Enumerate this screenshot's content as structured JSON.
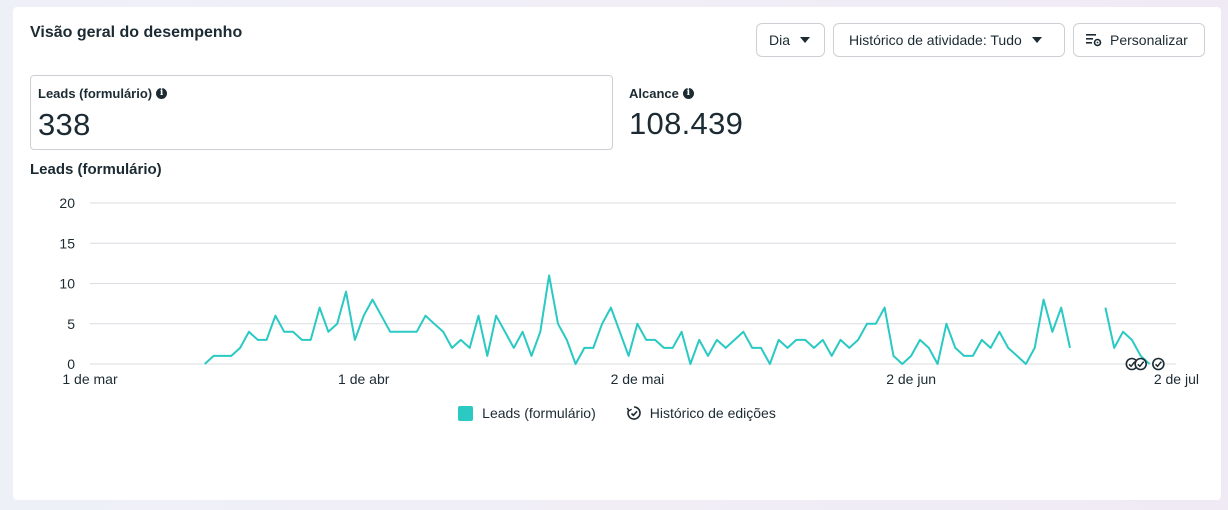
{
  "card": {
    "title": "Visão geral do desempenho"
  },
  "toolbar": {
    "period_label": "Dia",
    "activity_label": "Histórico de atividade: Tudo",
    "customize_label": "Personalizar"
  },
  "metrics": [
    {
      "label": "Leads (formulário)",
      "value": "338"
    },
    {
      "label": "Alcance",
      "value": "108.439"
    }
  ],
  "chart_title": "Leads (formulário)",
  "legend": {
    "series_label": "Leads (formulário)",
    "history_label": "Histórico de edições"
  },
  "colors": {
    "series": "#2ac9c4",
    "grid": "#dadde1",
    "text": "#1c2b33"
  },
  "chart_data": {
    "type": "line",
    "title": "Leads (formulário)",
    "xlabel": "",
    "ylabel": "",
    "ylim": [
      0,
      20
    ],
    "yticks": [
      0,
      5,
      10,
      15,
      20
    ],
    "xticks": [
      "1 de mar",
      "1 de abr",
      "2 de mai",
      "2 de jun",
      "2 de jul"
    ],
    "x_range": [
      "2024-03-01",
      "2024-07-02"
    ],
    "grid": true,
    "legend_position": "bottom",
    "series": [
      {
        "name": "Leads (formulário)",
        "color": "#2ac9c4",
        "points": [
          [
            "2024-03-14",
            0
          ],
          [
            "2024-03-15",
            1
          ],
          [
            "2024-03-16",
            1
          ],
          [
            "2024-03-17",
            1
          ],
          [
            "2024-03-18",
            2
          ],
          [
            "2024-03-19",
            4
          ],
          [
            "2024-03-20",
            3
          ],
          [
            "2024-03-21",
            3
          ],
          [
            "2024-03-22",
            6
          ],
          [
            "2024-03-23",
            4
          ],
          [
            "2024-03-24",
            4
          ],
          [
            "2024-03-25",
            3
          ],
          [
            "2024-03-26",
            3
          ],
          [
            "2024-03-27",
            7
          ],
          [
            "2024-03-28",
            4
          ],
          [
            "2024-03-29",
            5
          ],
          [
            "2024-03-30",
            9
          ],
          [
            "2024-03-31",
            3
          ],
          [
            "2024-04-01",
            6
          ],
          [
            "2024-04-02",
            8
          ],
          [
            "2024-04-03",
            6
          ],
          [
            "2024-04-04",
            4
          ],
          [
            "2024-04-05",
            4
          ],
          [
            "2024-04-06",
            4
          ],
          [
            "2024-04-07",
            4
          ],
          [
            "2024-04-08",
            6
          ],
          [
            "2024-04-09",
            5
          ],
          [
            "2024-04-10",
            4
          ],
          [
            "2024-04-11",
            2
          ],
          [
            "2024-04-12",
            3
          ],
          [
            "2024-04-13",
            2
          ],
          [
            "2024-04-14",
            6
          ],
          [
            "2024-04-15",
            1
          ],
          [
            "2024-04-16",
            6
          ],
          [
            "2024-04-17",
            4
          ],
          [
            "2024-04-18",
            2
          ],
          [
            "2024-04-19",
            4
          ],
          [
            "2024-04-20",
            1
          ],
          [
            "2024-04-21",
            4
          ],
          [
            "2024-04-22",
            11
          ],
          [
            "2024-04-23",
            5
          ],
          [
            "2024-04-24",
            3
          ],
          [
            "2024-04-25",
            0
          ],
          [
            "2024-04-26",
            2
          ],
          [
            "2024-04-27",
            2
          ],
          [
            "2024-04-28",
            5
          ],
          [
            "2024-04-29",
            7
          ],
          [
            "2024-04-30",
            4
          ],
          [
            "2024-05-01",
            1
          ],
          [
            "2024-05-02",
            5
          ],
          [
            "2024-05-03",
            3
          ],
          [
            "2024-05-04",
            3
          ],
          [
            "2024-05-05",
            2
          ],
          [
            "2024-05-06",
            2
          ],
          [
            "2024-05-07",
            4
          ],
          [
            "2024-05-08",
            0
          ],
          [
            "2024-05-09",
            3
          ],
          [
            "2024-05-10",
            1
          ],
          [
            "2024-05-11",
            3
          ],
          [
            "2024-05-12",
            2
          ],
          [
            "2024-05-13",
            3
          ],
          [
            "2024-05-14",
            4
          ],
          [
            "2024-05-15",
            2
          ],
          [
            "2024-05-16",
            2
          ],
          [
            "2024-05-17",
            0
          ],
          [
            "2024-05-18",
            3
          ],
          [
            "2024-05-19",
            2
          ],
          [
            "2024-05-20",
            3
          ],
          [
            "2024-05-21",
            3
          ],
          [
            "2024-05-22",
            2
          ],
          [
            "2024-05-23",
            3
          ],
          [
            "2024-05-24",
            1
          ],
          [
            "2024-05-25",
            3
          ],
          [
            "2024-05-26",
            2
          ],
          [
            "2024-05-27",
            3
          ],
          [
            "2024-05-28",
            5
          ],
          [
            "2024-05-29",
            5
          ],
          [
            "2024-05-30",
            7
          ],
          [
            "2024-05-31",
            1
          ],
          [
            "2024-06-01",
            0
          ],
          [
            "2024-06-02",
            1
          ],
          [
            "2024-06-03",
            3
          ],
          [
            "2024-06-04",
            2
          ],
          [
            "2024-06-05",
            0
          ],
          [
            "2024-06-06",
            5
          ],
          [
            "2024-06-07",
            2
          ],
          [
            "2024-06-08",
            1
          ],
          [
            "2024-06-09",
            1
          ],
          [
            "2024-06-10",
            3
          ],
          [
            "2024-06-11",
            2
          ],
          [
            "2024-06-12",
            4
          ],
          [
            "2024-06-13",
            2
          ],
          [
            "2024-06-14",
            1
          ],
          [
            "2024-06-15",
            0
          ],
          [
            "2024-06-16",
            2
          ],
          [
            "2024-06-17",
            8
          ],
          [
            "2024-06-18",
            4
          ],
          [
            "2024-06-19",
            7
          ],
          [
            "2024-06-20",
            2
          ],
          [
            "2024-06-24",
            7
          ],
          [
            "2024-06-25",
            2
          ],
          [
            "2024-06-26",
            4
          ],
          [
            "2024-06-27",
            3
          ],
          [
            "2024-06-28",
            1
          ],
          [
            "2024-06-29",
            0
          ]
        ],
        "gap_after": "2024-06-20"
      }
    ],
    "edit_history_markers": [
      "2024-06-27",
      "2024-06-28",
      "2024-06-30"
    ]
  }
}
